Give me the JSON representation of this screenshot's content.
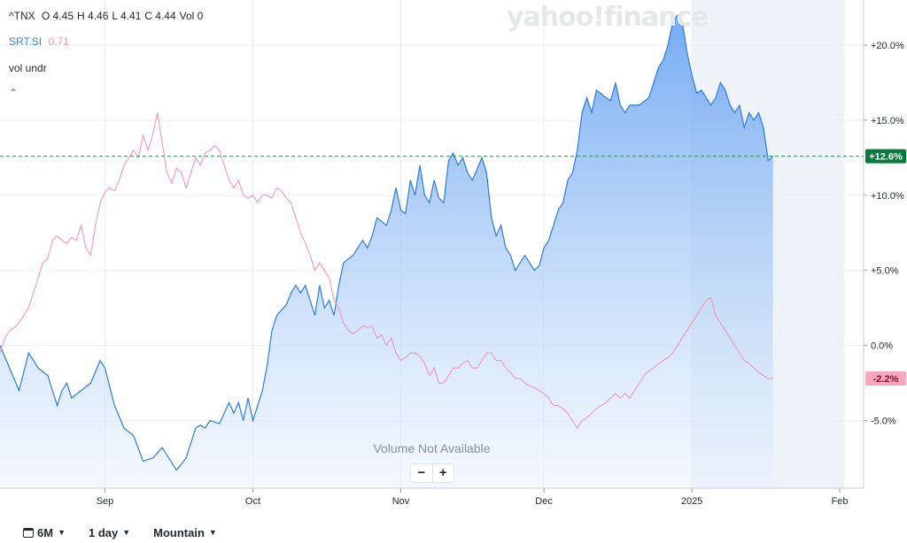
{
  "legend": {
    "symbol": "^TNX",
    "ohlc": [
      {
        "label": "O",
        "value": "4.45"
      },
      {
        "label": "H",
        "value": "4.46"
      },
      {
        "label": "L",
        "value": "4.41"
      },
      {
        "label": "C",
        "value": "4.44"
      },
      {
        "label": "Vol",
        "value": "0"
      }
    ],
    "compare_symbol": "SRT.SI",
    "compare_value": "0.71",
    "indicator": "vol undr"
  },
  "watermark": "yahoo!finance",
  "volume_note": "Volume Not Available",
  "zoom": {
    "minus": "−",
    "plus": "+"
  },
  "toolbar": {
    "range": "6M",
    "interval": "1 day",
    "timezone": "Mountain"
  },
  "colors": {
    "primary": "#3b82d6",
    "compare": "#f79cb8",
    "positive_badge": "#0a7a3c",
    "negative_badge": "#f7a8bd"
  },
  "chart_data": {
    "type": "area",
    "yaxis_ticks": [
      "+20.0%",
      "+15.0%",
      "+10.0%",
      "+5.0%",
      "0.0%",
      "-5.0%"
    ],
    "yaxis_values": [
      20,
      15,
      10,
      5,
      0,
      -5
    ],
    "ylim": [
      -9.5,
      23
    ],
    "xaxis_ticks": [
      {
        "label": "Sep",
        "x": 22
      },
      {
        "label": "Oct",
        "x": 53
      },
      {
        "label": "Nov",
        "x": 84
      },
      {
        "label": "Dec",
        "x": 114
      },
      {
        "label": "2025",
        "x": 145
      },
      {
        "label": "Feb",
        "x": 176
      }
    ],
    "xlim": [
      0,
      181
    ],
    "highlight_range": [
      145,
      177
    ],
    "last_badges": [
      {
        "series": "^TNX",
        "label": "+12.6%",
        "value": 12.6
      },
      {
        "series": "SRT.SI",
        "label": "-2.2%",
        "value": -2.2
      }
    ],
    "series": [
      {
        "name": "^TNX",
        "points": [
          [
            0,
            0
          ],
          [
            2,
            -1.5
          ],
          [
            4,
            -3
          ],
          [
            6,
            -0.5
          ],
          [
            8,
            -1.5
          ],
          [
            10,
            -2
          ],
          [
            12,
            -4
          ],
          [
            13,
            -3
          ],
          [
            14,
            -2.5
          ],
          [
            15,
            -3.5
          ],
          [
            17,
            -3
          ],
          [
            19,
            -2.5
          ],
          [
            21,
            -1
          ],
          [
            22,
            -1.5
          ],
          [
            24,
            -4
          ],
          [
            26,
            -5.5
          ],
          [
            28,
            -6
          ],
          [
            30,
            -7.7
          ],
          [
            32,
            -7.5
          ],
          [
            34,
            -6.8
          ],
          [
            36,
            -7.8
          ],
          [
            37,
            -8.3
          ],
          [
            39,
            -7.5
          ],
          [
            41,
            -5.5
          ],
          [
            42,
            -5.3
          ],
          [
            43,
            -5.5
          ],
          [
            44,
            -5
          ],
          [
            46,
            -5.2
          ],
          [
            47,
            -4.5
          ],
          [
            48,
            -3.8
          ],
          [
            49,
            -4.5
          ],
          [
            50,
            -3.8
          ],
          [
            51,
            -5
          ],
          [
            52,
            -3.5
          ],
          [
            53,
            -5
          ],
          [
            55,
            -3
          ],
          [
            56,
            -1.3
          ],
          [
            57,
            1
          ],
          [
            58,
            2
          ],
          [
            60,
            2.7
          ],
          [
            61,
            3.5
          ],
          [
            62,
            4
          ],
          [
            63,
            3.5
          ],
          [
            64,
            4
          ],
          [
            65,
            3
          ],
          [
            66,
            2
          ],
          [
            67,
            4
          ],
          [
            68,
            2.5
          ],
          [
            69,
            3
          ],
          [
            70,
            2
          ],
          [
            71,
            4
          ],
          [
            72,
            5.5
          ],
          [
            74,
            6
          ],
          [
            75,
            6.5
          ],
          [
            76,
            7
          ],
          [
            77,
            6.5
          ],
          [
            78,
            7.3
          ],
          [
            79,
            8.5
          ],
          [
            81,
            8
          ],
          [
            82,
            9
          ],
          [
            83,
            10.5
          ],
          [
            84,
            9
          ],
          [
            85,
            8.8
          ],
          [
            86,
            11
          ],
          [
            87,
            10
          ],
          [
            88,
            12
          ],
          [
            89,
            10
          ],
          [
            90,
            9.5
          ],
          [
            91,
            11
          ],
          [
            92,
            9.8
          ],
          [
            93,
            9.5
          ],
          [
            94,
            12.3
          ],
          [
            95,
            12.8
          ],
          [
            96,
            12
          ],
          [
            97,
            12.5
          ],
          [
            98,
            11.5
          ],
          [
            99,
            11
          ],
          [
            101,
            12.5
          ],
          [
            102,
            11.5
          ],
          [
            103,
            8.5
          ],
          [
            104,
            7.3
          ],
          [
            105,
            8
          ],
          [
            106,
            6.5
          ],
          [
            107,
            6
          ],
          [
            108,
            5
          ],
          [
            109,
            5.5
          ],
          [
            110,
            6
          ],
          [
            111,
            5.5
          ],
          [
            112,
            5
          ],
          [
            113,
            5.3
          ],
          [
            114,
            6.5
          ],
          [
            115,
            7
          ],
          [
            116,
            8
          ],
          [
            117,
            9
          ],
          [
            118,
            9.5
          ],
          [
            119,
            11
          ],
          [
            120,
            11.5
          ],
          [
            121,
            13
          ],
          [
            122,
            15.5
          ],
          [
            123,
            16.5
          ],
          [
            124,
            15.5
          ],
          [
            125,
            17
          ],
          [
            127,
            16.5
          ],
          [
            128,
            16.3
          ],
          [
            129,
            17.5
          ],
          [
            130,
            16
          ],
          [
            131,
            15.5
          ],
          [
            132,
            16
          ],
          [
            134,
            16
          ],
          [
            136,
            16.5
          ],
          [
            137,
            17.5
          ],
          [
            138,
            18.5
          ],
          [
            139,
            19
          ],
          [
            140,
            20
          ],
          [
            141,
            21.5
          ],
          [
            142,
            22
          ],
          [
            143,
            21.5
          ],
          [
            144,
            19.5
          ],
          [
            145,
            18
          ],
          [
            146,
            16.8
          ],
          [
            147,
            17
          ],
          [
            148,
            16.5
          ],
          [
            149,
            16
          ],
          [
            150,
            16.5
          ],
          [
            151,
            17.5
          ],
          [
            152,
            17
          ],
          [
            153,
            16
          ],
          [
            154,
            15.5
          ],
          [
            155,
            16
          ],
          [
            156,
            14.5
          ],
          [
            157,
            15.5
          ],
          [
            158,
            15
          ],
          [
            159,
            15.5
          ],
          [
            160,
            14.5
          ],
          [
            161,
            12.3
          ],
          [
            162,
            12.6
          ]
        ]
      },
      {
        "name": "SRT.SI",
        "points": [
          [
            0,
            -0.5
          ],
          [
            1,
            0.5
          ],
          [
            2,
            1
          ],
          [
            3,
            1.2
          ],
          [
            4,
            1.5
          ],
          [
            6,
            2.5
          ],
          [
            7,
            3.5
          ],
          [
            8,
            4.5
          ],
          [
            9,
            5.5
          ],
          [
            10,
            5.8
          ],
          [
            11,
            7
          ],
          [
            12,
            7.3
          ],
          [
            13,
            7
          ],
          [
            14,
            6.8
          ],
          [
            15,
            7.2
          ],
          [
            16,
            7
          ],
          [
            17,
            8
          ],
          [
            18,
            6.5
          ],
          [
            19,
            6
          ],
          [
            20,
            8
          ],
          [
            21,
            9.5
          ],
          [
            22,
            10.2
          ],
          [
            23,
            10.5
          ],
          [
            24,
            10.3
          ],
          [
            25,
            11
          ],
          [
            26,
            12
          ],
          [
            27,
            12.5
          ],
          [
            28,
            13
          ],
          [
            29,
            12.5
          ],
          [
            30,
            14
          ],
          [
            31,
            13
          ],
          [
            32,
            14
          ],
          [
            33,
            15.5
          ],
          [
            34,
            13.5
          ],
          [
            35,
            11.5
          ],
          [
            36,
            10.8
          ],
          [
            37,
            11.8
          ],
          [
            38,
            11.5
          ],
          [
            39,
            10.5
          ],
          [
            40,
            11.5
          ],
          [
            41,
            12.5
          ],
          [
            42,
            12
          ],
          [
            43,
            12.8
          ],
          [
            44,
            13
          ],
          [
            45,
            13.3
          ],
          [
            46,
            13
          ],
          [
            47,
            12
          ],
          [
            48,
            11
          ],
          [
            49,
            10.5
          ],
          [
            50,
            11
          ],
          [
            51,
            10
          ],
          [
            52,
            9.8
          ],
          [
            53,
            10
          ],
          [
            54,
            9.5
          ],
          [
            55,
            10
          ],
          [
            56,
            10
          ],
          [
            57,
            9.8
          ],
          [
            58,
            10.5
          ],
          [
            59,
            10.3
          ],
          [
            60,
            9.8
          ],
          [
            61,
            9.5
          ],
          [
            62,
            8.5
          ],
          [
            63,
            7.5
          ],
          [
            64,
            6.8
          ],
          [
            65,
            6
          ],
          [
            66,
            5
          ],
          [
            67,
            5.5
          ],
          [
            68,
            5
          ],
          [
            69,
            4.5
          ],
          [
            70,
            3
          ],
          [
            71,
            2.5
          ],
          [
            72,
            1.5
          ],
          [
            73,
            1
          ],
          [
            74,
            0.8
          ],
          [
            75,
            1
          ],
          [
            76,
            1.3
          ],
          [
            77,
            1.2
          ],
          [
            78,
            1.3
          ],
          [
            79,
            0.5
          ],
          [
            80,
            0.7
          ],
          [
            81,
            0
          ],
          [
            82,
            0.5
          ],
          [
            83,
            -0.5
          ],
          [
            84,
            -1
          ],
          [
            85,
            -0.8
          ],
          [
            86,
            -0.5
          ],
          [
            87,
            -0.5
          ],
          [
            88,
            -0.7
          ],
          [
            89,
            -1.2
          ],
          [
            90,
            -2
          ],
          [
            91,
            -1.5
          ],
          [
            92,
            -2.5
          ],
          [
            93,
            -2.5
          ],
          [
            94,
            -2
          ],
          [
            95,
            -1.5
          ],
          [
            96,
            -1.5
          ],
          [
            97,
            -1.2
          ],
          [
            98,
            -1
          ],
          [
            99,
            -1.5
          ],
          [
            100,
            -1.5
          ],
          [
            101,
            -1
          ],
          [
            102,
            -0.5
          ],
          [
            103,
            -0.5
          ],
          [
            104,
            -1
          ],
          [
            105,
            -1
          ],
          [
            106,
            -1.5
          ],
          [
            107,
            -1.8
          ],
          [
            108,
            -2.2
          ],
          [
            109,
            -2.2
          ],
          [
            110,
            -2.5
          ],
          [
            111,
            -2.7
          ],
          [
            112,
            -2.8
          ],
          [
            113,
            -3
          ],
          [
            114,
            -3.2
          ],
          [
            115,
            -3.5
          ],
          [
            116,
            -4
          ],
          [
            117,
            -4
          ],
          [
            118,
            -4.2
          ],
          [
            119,
            -4.5
          ],
          [
            120,
            -5
          ],
          [
            121,
            -5.5
          ],
          [
            122,
            -5
          ],
          [
            123,
            -4.8
          ],
          [
            124,
            -4.5
          ],
          [
            125,
            -4.2
          ],
          [
            126,
            -4
          ],
          [
            127,
            -3.8
          ],
          [
            128,
            -3.5
          ],
          [
            129,
            -3.2
          ],
          [
            130,
            -3.5
          ],
          [
            131,
            -3.2
          ],
          [
            132,
            -3.5
          ],
          [
            133,
            -3
          ],
          [
            134,
            -2.5
          ],
          [
            135,
            -2
          ],
          [
            136,
            -1.7
          ],
          [
            137,
            -1.5
          ],
          [
            138,
            -1.2
          ],
          [
            139,
            -1
          ],
          [
            140,
            -0.8
          ],
          [
            141,
            -0.5
          ],
          [
            142,
            0
          ],
          [
            143,
            0.5
          ],
          [
            144,
            1
          ],
          [
            145,
            1.5
          ],
          [
            146,
            2
          ],
          [
            147,
            2.5
          ],
          [
            148,
            3
          ],
          [
            149,
            3.2
          ],
          [
            150,
            2
          ],
          [
            151,
            1.5
          ],
          [
            152,
            1
          ],
          [
            153,
            0.5
          ],
          [
            154,
            0
          ],
          [
            155,
            -0.5
          ],
          [
            156,
            -1
          ],
          [
            157,
            -1.2
          ],
          [
            158,
            -1.5
          ],
          [
            159,
            -1.8
          ],
          [
            160,
            -2
          ],
          [
            161,
            -2.2
          ],
          [
            162,
            -2.2
          ]
        ]
      }
    ]
  }
}
